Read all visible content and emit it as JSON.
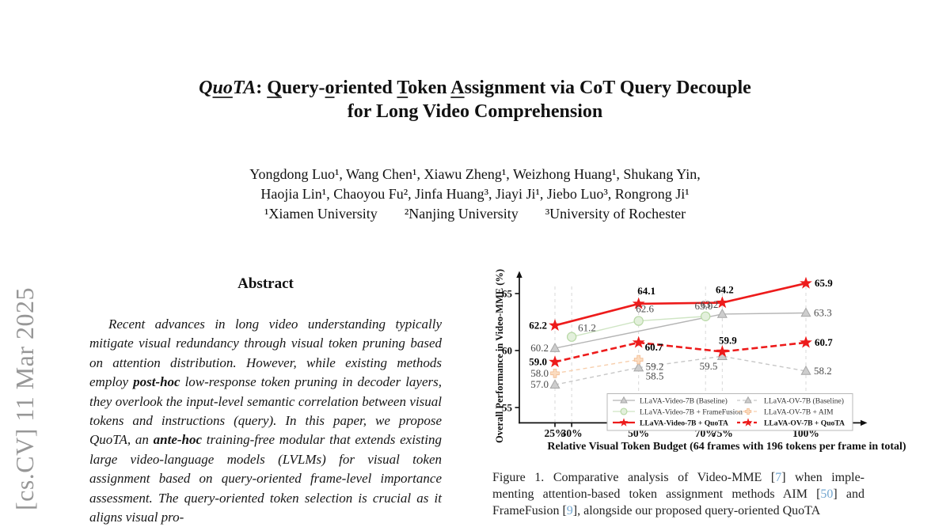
{
  "watermark": {
    "text": "[cs.CV] 11 Mar 2025",
    "color": "#979797"
  },
  "title": {
    "quota_q": "Q",
    "quota_uo": "uo",
    "quota_ta": "TA",
    "colon": ": ",
    "q1": "Q",
    "q1rest": "uery-",
    "o1": "o",
    "o1rest": "riented ",
    "t1": "T",
    "t1rest": "oken ",
    "a1": "A",
    "a1rest": "ssignment via CoT Query Decouple",
    "line2": "for Long Video Comprehension"
  },
  "authors": {
    "line1": "Yongdong Luo¹, Wang Chen¹, Xiawu Zheng¹, Weizhong Huang¹, Shukang Yin,",
    "line2": "Haojia Lin¹, Chaoyou Fu², Jinfa Huang³, Jiayi Ji¹, Jiebo Luo³, Rongrong Ji¹",
    "affiliations": [
      "¹Xiamen University",
      "²Nanjing University",
      "³University of Rochester"
    ]
  },
  "abstract": {
    "heading": "Abstract",
    "segments": [
      {
        "t": "Recent advances in long video understanding typically mitigate visual redundancy through visual token pruning based on attention distribution. However, while existing methods employ "
      },
      {
        "t": "post-hoc",
        "b": true
      },
      {
        "t": " low-response token pruning in decoder layers, they overlook the input-level semantic correlation between visual tokens and instructions (query). In this paper, we propose QuoTA, an "
      },
      {
        "t": "ante-hoc",
        "b": true
      },
      {
        "t": " training-free modular that extends existing large video-language models (LVLMs) for visual token assignment based on query-oriented frame-level importance assessment. The query-oriented token selection is crucial as it aligns visual pro-"
      }
    ]
  },
  "caption": {
    "lines": [
      [
        {
          "t": "Figure 1. Comparative analysis of Video-MME ["
        },
        {
          "t": "7",
          "c": "#72a6cf",
          "name": "citation-7",
          "link": true
        },
        {
          "t": "] when imple-"
        }
      ],
      [
        {
          "t": "menting attention-based token assignment methods AIM ["
        },
        {
          "t": "50",
          "c": "#72a6cf",
          "name": "citation-50",
          "link": true
        },
        {
          "t": "] and"
        }
      ],
      [
        {
          "t": "FrameFusion ["
        },
        {
          "t": "9",
          "c": "#72a6cf",
          "name": "citation-9",
          "link": true
        },
        {
          "t": "], alongside our proposed query-oriented QuoTA"
        }
      ]
    ]
  },
  "chart_data": {
    "type": "line",
    "title": "",
    "xlabel": "Relative Visual Token Budget (64 frames with 196 tokens per frame in total)",
    "ylabel": "Overall Performance in Video-MME (%)",
    "x_ticks": [
      "25%",
      "30%",
      "50%",
      "70%",
      "75%",
      "100%"
    ],
    "x_tick_values": [
      25,
      30,
      50,
      70,
      75,
      100
    ],
    "y_ticks": [
      55,
      60,
      65
    ],
    "ylim": [
      53.7,
      66.3
    ],
    "xlim": [
      14.5,
      116
    ],
    "grid": "vertical-dashed",
    "legend_position": "lower center",
    "series": [
      {
        "name": "LLaVA-Video-7B (Baseline)",
        "marker": "triangle",
        "line_style": "solid",
        "emph": false,
        "color": "#b5b5b5",
        "marker_fill": "#cdcdcd",
        "marker_stroke": "#a6a6a6",
        "points": [
          {
            "x": 25,
            "y": 60.2,
            "label": "60.2",
            "anchor": "end",
            "dx": -8,
            "dy": 4
          },
          {
            "x": 75,
            "y": 63.2,
            "label": "63.2",
            "anchor": "end",
            "dx": -5,
            "dy": -8
          },
          {
            "x": 100,
            "y": 63.3,
            "label": "63.3",
            "anchor": "start",
            "dx": 10,
            "dy": 4
          }
        ]
      },
      {
        "name": "LLaVA-Video-7B + FrameFusion",
        "marker": "circle",
        "line_style": "solid",
        "emph": false,
        "color": "#cfe5c4",
        "marker_fill": "#e3f0dc",
        "marker_stroke": "#b7d8a5",
        "points": [
          {
            "x": 30,
            "y": 61.2,
            "label": "61.2",
            "anchor": "start",
            "dx": 8,
            "dy": -7
          },
          {
            "x": 50,
            "y": 62.6,
            "label": "62.6",
            "anchor": "middle",
            "dx": 8,
            "dy": -11
          },
          {
            "x": 70,
            "y": 63.0,
            "label": "63.0",
            "anchor": "end",
            "dx": 9,
            "dy": -9
          }
        ]
      },
      {
        "name": "LLaVA-Video-7B + QuoTA",
        "marker": "star",
        "line_style": "solid",
        "emph": true,
        "color": "#ed1b1b",
        "marker_fill": "#ed1b1b",
        "marker_stroke": "#d21414",
        "points": [
          {
            "x": 25,
            "y": 62.2,
            "label": "62.2",
            "anchor": "end",
            "dx": -10,
            "dy": 4
          },
          {
            "x": 50,
            "y": 64.1,
            "label": "64.1",
            "anchor": "middle",
            "dx": 10,
            "dy": -12
          },
          {
            "x": 75,
            "y": 64.2,
            "label": "64.2",
            "anchor": "middle",
            "dx": 3,
            "dy": -12
          },
          {
            "x": 100,
            "y": 65.9,
            "label": "65.9",
            "anchor": "start",
            "dx": 11,
            "dy": 4
          }
        ]
      },
      {
        "name": "LLaVA-OV-7B (Baseline)",
        "marker": "triangle",
        "line_style": "dashed",
        "emph": false,
        "color": "#c7c7c7",
        "marker_fill": "#cdcdcd",
        "marker_stroke": "#a6a6a6",
        "points": [
          {
            "x": 25,
            "y": 57.0,
            "label": "57.0",
            "anchor": "end",
            "dx": -8,
            "dy": 4
          },
          {
            "x": 50,
            "y": 58.5,
            "label": "58.5",
            "anchor": "start",
            "dx": 9,
            "dy": 15
          },
          {
            "x": 75,
            "y": 59.5,
            "label": "59.5",
            "anchor": "end",
            "dx": -6,
            "dy": 17
          },
          {
            "x": 100,
            "y": 58.2,
            "label": "58.2",
            "anchor": "start",
            "dx": 10,
            "dy": 4
          }
        ]
      },
      {
        "name": "LLaVA-OV-7B + AIM",
        "marker": "plus",
        "line_style": "dashed",
        "emph": false,
        "color": "#f7cfad",
        "marker_fill": "#fbdcc0",
        "marker_stroke": "#f2b98e",
        "points": [
          {
            "x": 25,
            "y": 58.0,
            "label": "58.0",
            "anchor": "end",
            "dx": -8,
            "dy": 4
          },
          {
            "x": 50,
            "y": 59.2,
            "label": "59.2",
            "anchor": "start",
            "dx": 9,
            "dy": 13
          }
        ]
      },
      {
        "name": "LLaVA-OV-7B + QuoTA",
        "marker": "star",
        "line_style": "dashed",
        "emph": true,
        "color": "#ed1b1b",
        "marker_fill": "#ed1b1b",
        "marker_stroke": "#d21414",
        "points": [
          {
            "x": 25,
            "y": 59.0,
            "label": "59.0",
            "anchor": "end",
            "dx": -10,
            "dy": 4
          },
          {
            "x": 50,
            "y": 60.7,
            "label": "60.7",
            "anchor": "start",
            "dx": 8,
            "dy": 10
          },
          {
            "x": 75,
            "y": 59.9,
            "label": "59.9",
            "anchor": "middle",
            "dx": 7,
            "dy": -10
          },
          {
            "x": 100,
            "y": 60.7,
            "label": "60.7",
            "anchor": "start",
            "dx": 11,
            "dy": 4
          }
        ]
      }
    ]
  }
}
